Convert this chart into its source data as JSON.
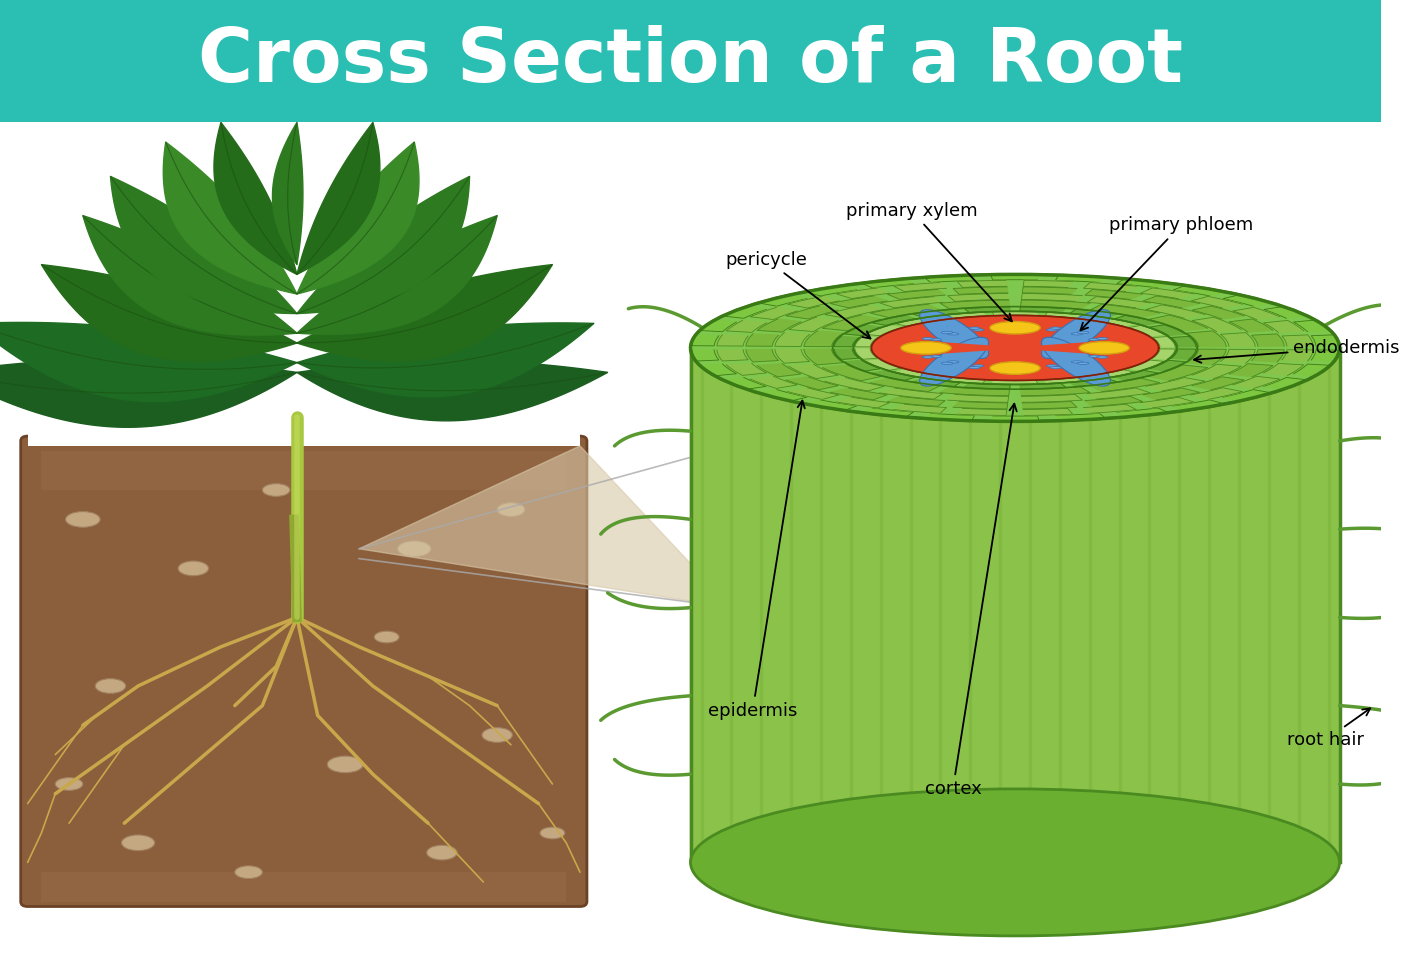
{
  "title": "Cross Section of a Root",
  "title_bg_color": "#2BBFB3",
  "title_text_color": "#FFFFFF",
  "background_color": "#FFFFFF",
  "labels": {
    "primary_xylem": "primary xylem",
    "primary_phloem": "primary phloem",
    "endodermis": "endodermis",
    "pericycle": "pericycle",
    "epidermis": "epidermis",
    "cortex": "cortex",
    "root_hair": "root hair"
  },
  "colors": {
    "teal": "#2BBFB3",
    "outer_green": "#8BC34A",
    "mid_green": "#6BAF3A",
    "dark_green_edge": "#4A8A20",
    "cortex_light": "#A5D46A",
    "cortex_cell": "#8BC34A",
    "endodermis_green": "#6BAF3A",
    "pericycle_light": "#B8D87A",
    "phloem_blue": "#5B9BD5",
    "xylem_red": "#E8472A",
    "xylem_yellow": "#F5C518",
    "soil_brown": "#8B5E3C",
    "soil_edge": "#6B4226",
    "root_color": "#C8A84B",
    "stem_green": "#8BBB30"
  }
}
